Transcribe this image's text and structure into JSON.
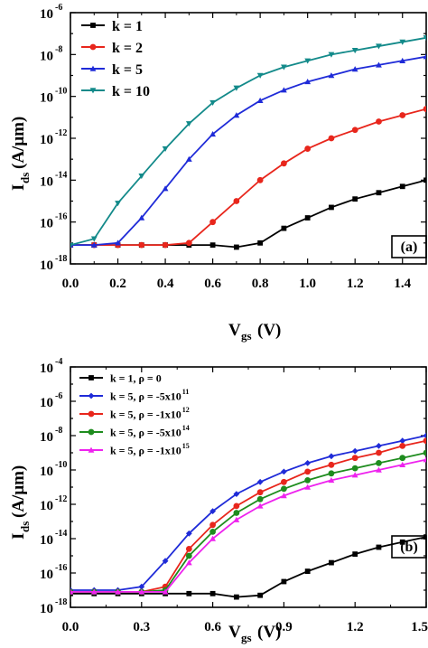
{
  "chart_data": [
    {
      "type": "line",
      "panel_label": "(a)",
      "xlabel_main": "V",
      "xlabel_sub": "gs",
      "xlabel_unit": "(V)",
      "ylabel_main": "I",
      "ylabel_sub": "ds",
      "ylabel_unit": "(A/μm)",
      "xlim": [
        0.0,
        1.5
      ],
      "ylim_log10": [
        -18,
        -6
      ],
      "y_scale": "log",
      "x_ticks": [
        "0.0",
        "0.2",
        "0.4",
        "0.6",
        "0.8",
        "1.0",
        "1.2",
        "1.4"
      ],
      "y_tick_exponents": [
        "-18",
        "-16",
        "-14",
        "-12",
        "-10",
        "-8",
        "-6"
      ],
      "legend_position": "top-left",
      "x": [
        0.0,
        0.1,
        0.2,
        0.3,
        0.4,
        0.5,
        0.6,
        0.7,
        0.8,
        0.9,
        1.0,
        1.1,
        1.2,
        1.3,
        1.4,
        1.5
      ],
      "series": [
        {
          "name": "k = 1",
          "color": "#000000",
          "marker": "square",
          "log10_values": [
            -17.1,
            -17.1,
            -17.1,
            -17.1,
            -17.1,
            -17.1,
            -17.1,
            -17.2,
            -17.0,
            -16.3,
            -15.8,
            -15.3,
            -14.9,
            -14.6,
            -14.3,
            -14.0
          ]
        },
        {
          "name": "k = 2",
          "color": "#e8261c",
          "marker": "circle",
          "log10_values": [
            -17.1,
            -17.1,
            -17.1,
            -17.1,
            -17.1,
            -17.0,
            -16.0,
            -15.0,
            -14.0,
            -13.2,
            -12.5,
            -12.0,
            -11.6,
            -11.2,
            -10.9,
            -10.6
          ]
        },
        {
          "name": "k = 5",
          "color": "#1f2bd8",
          "marker": "triangle-up",
          "log10_values": [
            -17.1,
            -17.1,
            -17.0,
            -15.8,
            -14.4,
            -13.0,
            -11.8,
            -10.9,
            -10.2,
            -9.7,
            -9.3,
            -9.0,
            -8.7,
            -8.5,
            -8.3,
            -8.1
          ]
        },
        {
          "name": "k = 10",
          "color": "#138a8a",
          "marker": "triangle-down",
          "log10_values": [
            -17.1,
            -16.8,
            -15.1,
            -13.8,
            -12.5,
            -11.3,
            -10.3,
            -9.6,
            -9.0,
            -8.6,
            -8.3,
            -8.0,
            -7.8,
            -7.6,
            -7.4,
            -7.2
          ]
        }
      ]
    },
    {
      "type": "line",
      "panel_label": "(b)",
      "xlabel_main": "V",
      "xlabel_sub": "gs",
      "xlabel_unit": "(V)",
      "ylabel_main": "I",
      "ylabel_sub": "ds",
      "ylabel_unit": "(A/μm)",
      "xlim": [
        0.0,
        1.5
      ],
      "ylim_log10": [
        -18,
        -4
      ],
      "y_scale": "log",
      "x_ticks": [
        "0.0",
        "0.3",
        "0.6",
        "0.9",
        "1.2",
        "1.5"
      ],
      "y_tick_exponents": [
        "-18",
        "-16",
        "-14",
        "-12",
        "-10",
        "-8",
        "-6",
        "-4"
      ],
      "legend_position": "top-left",
      "x": [
        0.0,
        0.1,
        0.2,
        0.3,
        0.4,
        0.5,
        0.6,
        0.7,
        0.8,
        0.9,
        1.0,
        1.1,
        1.2,
        1.3,
        1.4,
        1.5
      ],
      "series": [
        {
          "name": "k = 1, ρ = 0",
          "color": "#000000",
          "marker": "square",
          "log10_values": [
            -17.2,
            -17.2,
            -17.2,
            -17.2,
            -17.2,
            -17.2,
            -17.2,
            -17.4,
            -17.3,
            -16.5,
            -15.9,
            -15.4,
            -14.9,
            -14.5,
            -14.2,
            -13.9
          ]
        },
        {
          "name": "k = 5, ρ = -5x10",
          "name_exp": "11",
          "color": "#1f2bd8",
          "marker": "diamond",
          "log10_values": [
            -17.0,
            -17.0,
            -17.0,
            -16.8,
            -15.3,
            -13.7,
            -12.4,
            -11.4,
            -10.7,
            -10.1,
            -9.6,
            -9.2,
            -8.9,
            -8.6,
            -8.3,
            -8.0
          ]
        },
        {
          "name": "k = 5, ρ = -1x10",
          "name_exp": "12",
          "color": "#e8261c",
          "marker": "circle",
          "log10_values": [
            -17.1,
            -17.1,
            -17.1,
            -17.1,
            -16.8,
            -14.6,
            -13.2,
            -12.1,
            -11.3,
            -10.7,
            -10.1,
            -9.7,
            -9.3,
            -9.0,
            -8.6,
            -8.3
          ]
        },
        {
          "name": "k = 5, ρ = -5x10",
          "name_exp": "14",
          "color": "#1e8c1e",
          "marker": "circle",
          "log10_values": [
            -17.1,
            -17.1,
            -17.1,
            -17.1,
            -17.0,
            -15.0,
            -13.6,
            -12.5,
            -11.7,
            -11.1,
            -10.6,
            -10.2,
            -9.9,
            -9.6,
            -9.3,
            -9.0
          ]
        },
        {
          "name": "k = 5, ρ = -1x10",
          "name_exp": "15",
          "color": "#ee22ee",
          "marker": "triangle-up",
          "log10_values": [
            -17.1,
            -17.1,
            -17.1,
            -17.1,
            -17.1,
            -15.4,
            -14.0,
            -12.9,
            -12.1,
            -11.5,
            -11.0,
            -10.6,
            -10.3,
            -10.0,
            -9.7,
            -9.4
          ]
        }
      ]
    }
  ]
}
